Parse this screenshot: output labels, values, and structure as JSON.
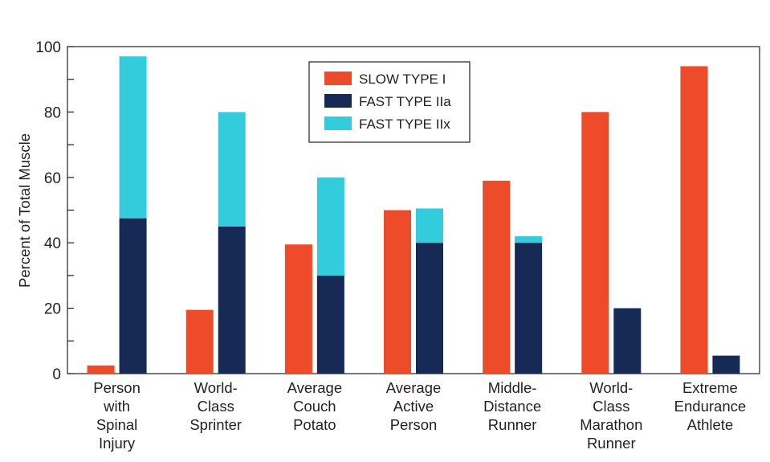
{
  "chart_data": {
    "type": "bar",
    "title": "",
    "xlabel": "",
    "ylabel": "Percent of Total Muscle",
    "ylim": [
      0,
      100
    ],
    "yticks": [
      0,
      20,
      40,
      60,
      80,
      100
    ],
    "grid": false,
    "legend_position": "top-center",
    "categories": [
      [
        "Person",
        "with",
        "Spinal",
        "Injury"
      ],
      [
        "World-",
        "Class",
        "Sprinter"
      ],
      [
        "Average",
        "Couch",
        "Potato"
      ],
      [
        "Average",
        "Active",
        "Person"
      ],
      [
        "Middle-",
        "Distance",
        "Runner"
      ],
      [
        "World-",
        "Class",
        "Marathon",
        "Runner"
      ],
      [
        "Extreme",
        "Endurance",
        "Athlete"
      ]
    ],
    "series": [
      {
        "name": "SLOW TYPE I",
        "color": "#ee4b2b",
        "stack": "slow",
        "values": [
          2.5,
          19.5,
          39.5,
          50,
          59,
          80,
          94
        ]
      },
      {
        "name": "FAST TYPE IIa",
        "color": "#172a55",
        "stack": "fast",
        "values": [
          47.5,
          45,
          30,
          40,
          40,
          20,
          5.5
        ]
      },
      {
        "name": "FAST TYPE IIx",
        "color": "#33ccdd",
        "stack": "fast",
        "values": [
          49.5,
          35,
          30,
          10.5,
          2,
          0,
          0
        ]
      }
    ]
  }
}
